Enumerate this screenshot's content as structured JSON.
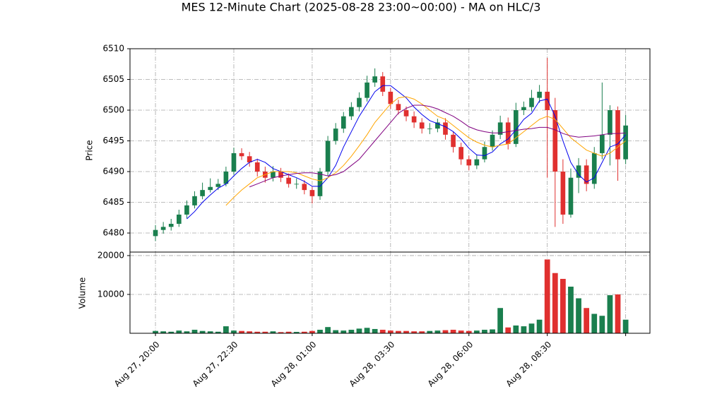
{
  "chart_data": {
    "type": "candlestick",
    "title": "MES 12-Minute Chart (2025-08-28 23:00~00:00) - MA on HLC/3",
    "ylabel": "Price",
    "up_color": "#1a7f4e",
    "down_color": "#e0302f",
    "grid": true,
    "xlim": [
      -3.25,
      63.1
    ],
    "xticks": [
      {
        "value": 0,
        "label": "Aug 27, 20:00"
      },
      {
        "value": 10,
        "label": "Aug 27, 22:30"
      },
      {
        "value": 20,
        "label": "Aug 28, 01:00"
      },
      {
        "value": 30,
        "label": "Aug 28, 03:30"
      },
      {
        "value": 40,
        "label": "Aug 28, 06:00"
      },
      {
        "value": 50,
        "label": "Aug 28, 08:30"
      },
      {
        "value": 60,
        "label": ""
      }
    ],
    "ylim": [
      6476.9,
      6510
    ],
    "yticks": [
      6480,
      6485,
      6490,
      6495,
      6500,
      6505,
      6510
    ],
    "open": [
      6479.5,
      6480.5,
      6481,
      6481.5,
      6483,
      6484.5,
      6486,
      6487,
      6487.5,
      6488,
      6490,
      6493,
      6492.5,
      6491.5,
      6490,
      6489,
      6490,
      6489,
      6488,
      6488,
      6487,
      6486,
      6490,
      6495,
      6497,
      6499,
      6500.5,
      6502,
      6504.5,
      6505.5,
      6503,
      6501,
      6500,
      6499,
      6498,
      6497,
      6497,
      6498,
      6496,
      6494,
      6492,
      6491,
      6492,
      6494,
      6496,
      6498,
      6494.5,
      6500,
      6500.5,
      6502,
      6503,
      6500,
      6490,
      6483,
      6489,
      6491,
      6488,
      6493,
      6496,
      6500,
      6492
    ],
    "high": [
      6481.3,
      6481.8,
      6482.3,
      6483.8,
      6485.3,
      6486.8,
      6488.2,
      6488.9,
      6488.8,
      6490.8,
      6493.9,
      6493.8,
      6493.2,
      6492.1,
      6490.8,
      6490.9,
      6490.6,
      6489.7,
      6488.9,
      6488.6,
      6487.5,
      6490.6,
      6495.8,
      6497.9,
      6499.7,
      6501.3,
      6502.9,
      6505.6,
      6506.8,
      6506.2,
      6503.6,
      6501.7,
      6500.6,
      6499.8,
      6498.7,
      6497.9,
      6498.6,
      6498.7,
      6496.5,
      6494.7,
      6492.6,
      6492.8,
      6494.9,
      6496.7,
      6499.1,
      6498.8,
      6501.2,
      6501.4,
      6503.3,
      6504.1,
      6508.5,
      6502,
      6492,
      6490.5,
      6492.2,
      6492,
      6494,
      6504.5,
      6500.8,
      6500.6,
      6499.2
    ],
    "low": [
      6478.7,
      6479.9,
      6480.4,
      6481,
      6482.4,
      6484,
      6485.5,
      6486.6,
      6487,
      6487.6,
      6489.5,
      6491.9,
      6490.8,
      6489.2,
      6488.2,
      6488.4,
      6488.3,
      6487.4,
      6487.2,
      6486.3,
      6484.8,
      6485.4,
      6489.3,
      6494.4,
      6496.3,
      6498.4,
      6499.8,
      6501.4,
      6503.8,
      6502.3,
      6500.2,
      6499.3,
      6498.2,
      6497.1,
      6496.2,
      6496.1,
      6496.4,
      6495.2,
      6493.1,
      6491.1,
      6490.2,
      6490.4,
      6491.5,
      6493.4,
      6495.3,
      6493.6,
      6494,
      6499.2,
      6499.8,
      6501.2,
      6489,
      6481,
      6481.5,
      6482.5,
      6486.5,
      6486.8,
      6487.2,
      6492,
      6491,
      6488.5,
      6491.2
    ],
    "close": [
      6480.5,
      6481,
      6481.5,
      6483,
      6484.5,
      6486,
      6487,
      6487.5,
      6488,
      6490,
      6493,
      6492.5,
      6491.5,
      6490,
      6489,
      6490,
      6489,
      6488,
      6488,
      6487,
      6486,
      6490,
      6495,
      6497,
      6499,
      6500.5,
      6502,
      6504.5,
      6505.5,
      6503,
      6501,
      6500,
      6499,
      6498,
      6497,
      6497,
      6498,
      6496,
      6494,
      6492,
      6491,
      6492,
      6494,
      6496,
      6498,
      6494.5,
      6500,
      6500.5,
      6502,
      6503,
      6500,
      6490,
      6483,
      6489,
      6491,
      6488,
      6493,
      6496,
      6500,
      6492,
      6497.5
    ],
    "series": [
      {
        "color": "#0000ee",
        "values": [
          null,
          null,
          null,
          null,
          6482.3,
          6483.5,
          6485,
          6486.2,
          6487.3,
          6488,
          6489.3,
          6490.5,
          6491.5,
          6492,
          6491.5,
          6490.5,
          6490,
          6489.5,
          6489,
          6488.4,
          6487.6,
          6487.6,
          6489,
          6491,
          6494,
          6496.5,
          6499,
          6501,
          6503,
          6504,
          6504,
          6503,
          6502,
          6500.5,
          6499.3,
          6498.3,
          6497.8,
          6497.3,
          6496.5,
          6495.3,
          6493.8,
          6492.7,
          6492.6,
          6493.2,
          6494.5,
          6495.3,
          6496.8,
          6498.5,
          6499.5,
          6501.5,
          6501.8,
          6499,
          6495,
          6491.5,
          6489.5,
          6488.3,
          6489,
          6491.5,
          6494,
          6494.5,
          6496
        ]
      },
      {
        "color": "#ffa500",
        "values": [
          null,
          null,
          null,
          null,
          null,
          null,
          null,
          null,
          null,
          6484.5,
          6485.8,
          6487,
          6488,
          6489,
          6489.5,
          6490,
          6490,
          6490,
          6489.8,
          6489.3,
          6488.8,
          6488.5,
          6489,
          6489.8,
          6491,
          6492.5,
          6494.2,
          6496,
          6498,
          6499.5,
          6501,
          6502,
          6502.2,
          6501.8,
          6501,
          6500,
          6499,
          6498.5,
          6497.5,
          6496.5,
          6495.5,
          6494.8,
          6494.3,
          6494,
          6494.3,
          6494.5,
          6495.5,
          6496.5,
          6497.5,
          6498.5,
          6499,
          6498.5,
          6497,
          6495.5,
          6494.5,
          6493.5,
          6493,
          6492.5,
          6493,
          6494,
          6495
        ]
      },
      {
        "color": "#800080",
        "values": [
          null,
          null,
          null,
          null,
          null,
          null,
          null,
          null,
          null,
          null,
          null,
          null,
          6487.5,
          6488,
          6488.5,
          6489,
          6489.3,
          6489.5,
          6489.7,
          6489.8,
          6489.8,
          6489.6,
          6489.3,
          6489.5,
          6490,
          6491,
          6492,
          6493.5,
          6495,
          6496.5,
          6498,
          6499.5,
          6500.3,
          6500.8,
          6500.8,
          6500.6,
          6500.2,
          6499.6,
          6499,
          6498.2,
          6497.3,
          6496.8,
          6496.5,
          6496.3,
          6496.3,
          6496.5,
          6496.7,
          6496.9,
          6497,
          6497.2,
          6497.2,
          6496.8,
          6496.2,
          6495.8,
          6495.6,
          6495.7,
          6495.8,
          6496,
          6496.2,
          6496.2,
          6496.3
        ]
      }
    ],
    "volume": {
      "ylabel": "Volume",
      "ylim": [
        0,
        20900
      ],
      "yticks": [
        10000,
        20000
      ],
      "values": [
        600,
        500,
        400,
        700,
        500,
        900,
        600,
        500,
        400,
        1800,
        700,
        600,
        500,
        400,
        400,
        500,
        300,
        400,
        350,
        400,
        600,
        900,
        1600,
        800,
        700,
        900,
        1200,
        1400,
        1100,
        900,
        700,
        600,
        600,
        500,
        500,
        600,
        700,
        800,
        900,
        700,
        600,
        700,
        900,
        1000,
        6500,
        1500,
        2000,
        1800,
        2500,
        3500,
        19000,
        15500,
        14000,
        12000,
        9000,
        6500,
        5000,
        4500,
        9800,
        10000,
        3500
      ]
    }
  }
}
